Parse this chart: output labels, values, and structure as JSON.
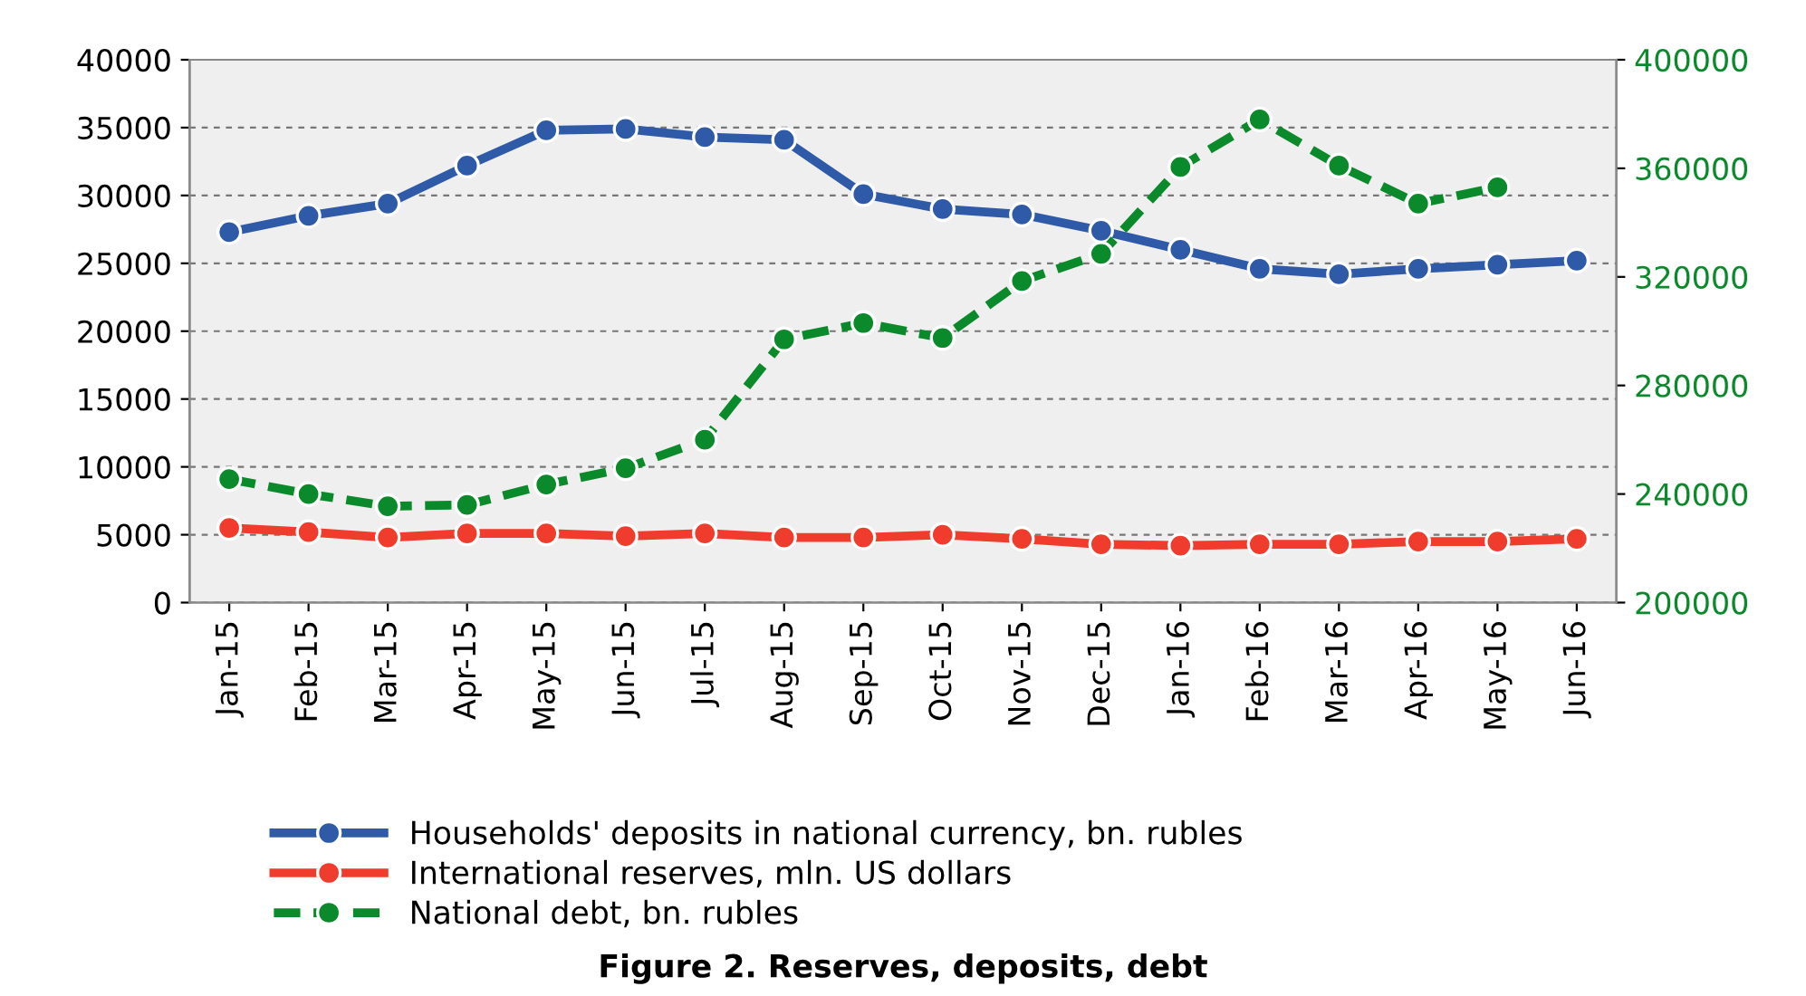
{
  "chart_data": {
    "type": "line",
    "title": "Figure 2. Reserves, deposits, debt",
    "categories": [
      "Jan-15",
      "Feb-15",
      "Mar-15",
      "Apr-15",
      "May-15",
      "Jun-15",
      "Jul-15",
      "Aug-15",
      "Sep-15",
      "Oct-15",
      "Nov-15",
      "Dec-15",
      "Jan-16",
      "Feb-16",
      "Mar-16",
      "Apr-16",
      "May-16",
      "Jun-16"
    ],
    "series": [
      {
        "name": "Households' deposits in national currency, bn. rubles",
        "color": "#2e5aa8",
        "line_style": "solid",
        "values": [
          27300,
          28500,
          29400,
          32200,
          34800,
          34900,
          34300,
          34100,
          30100,
          29000,
          28600,
          27400,
          26000,
          24600,
          24200,
          24600,
          24900,
          25200
        ]
      },
      {
        "name": "International reserves, mln. US dollars",
        "color": "#f03c2c",
        "line_style": "solid",
        "values": [
          5500,
          5200,
          4800,
          5100,
          5100,
          4900,
          5100,
          4800,
          4800,
          5000,
          4700,
          4300,
          4200,
          4300,
          4300,
          4500,
          4500,
          4700
        ]
      },
      {
        "name": "National debt, bn. rubles",
        "color": "#0a8a2a",
        "line_style": "dashed",
        "axis": "y2",
        "values": [
          245500,
          240000,
          235500,
          236000,
          243500,
          249500,
          260000,
          297000,
          303000,
          297500,
          318500,
          328500,
          360500,
          378000,
          361000,
          347000,
          353000,
          null
        ]
      }
    ],
    "ylim": [
      0,
      40000
    ],
    "yticks": [
      0,
      5000,
      10000,
      15000,
      20000,
      25000,
      30000,
      35000,
      40000
    ],
    "y2lim": [
      200000,
      400000
    ],
    "y2ticks": [
      200000,
      240000,
      280000,
      320000,
      360000,
      400000
    ],
    "grid": "y",
    "legend": "bottom",
    "marker": "circle"
  }
}
